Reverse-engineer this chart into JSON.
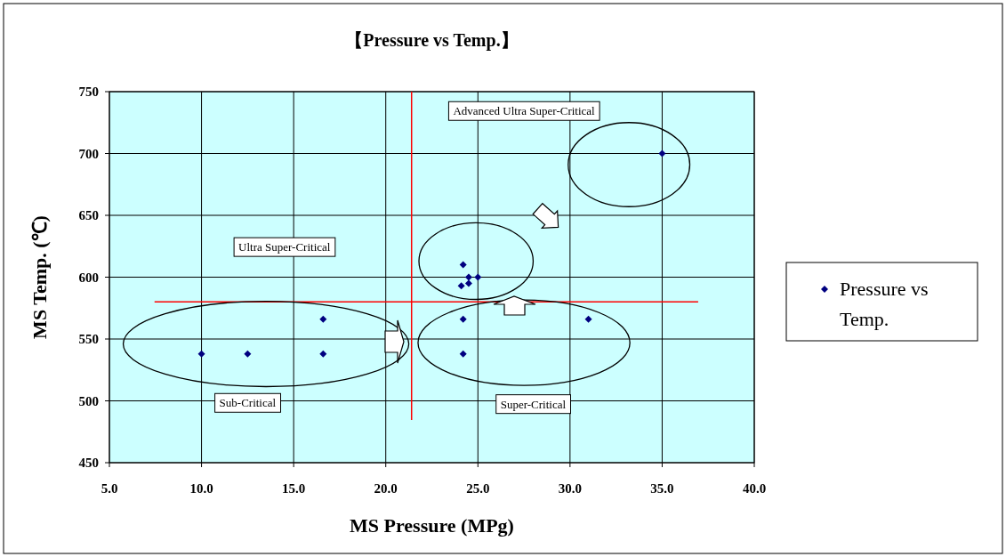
{
  "chart_data": {
    "type": "scatter",
    "title": "【Pressure vs Temp.】",
    "xlabel": "MS Pressure (MPg)",
    "ylabel": "MS Temp. (℃)",
    "x": [
      10.0,
      12.5,
      16.6,
      16.6,
      24.2,
      24.2,
      31.0,
      24.2,
      24.5,
      25.0,
      24.1,
      24.5,
      35.0
    ],
    "series": [
      {
        "name": "Pressure vs Temp.",
        "color": "#000080",
        "values": [
          538,
          538,
          538,
          566,
          538,
          566,
          566,
          610,
          600,
          600,
          593,
          595,
          700
        ]
      }
    ],
    "xlim": [
      5.0,
      40.0
    ],
    "xticks": [
      {
        "value": 5,
        "label": "5.0"
      },
      {
        "value": 10,
        "label": "10.0"
      },
      {
        "value": 15,
        "label": "15.0"
      },
      {
        "value": 20,
        "label": "20.0"
      },
      {
        "value": 25,
        "label": "25.0"
      },
      {
        "value": 30,
        "label": "30.0"
      },
      {
        "value": 35,
        "label": "35.0"
      },
      {
        "value": 40,
        "label": "40.0"
      }
    ],
    "ylim": [
      450,
      750
    ],
    "yticks": [
      450,
      500,
      550,
      600,
      650,
      700,
      750
    ],
    "ref_lines": [
      {
        "axis": "y",
        "value": 580,
        "color": "#ff0000"
      },
      {
        "axis": "x",
        "value": 21.4,
        "color": "#ff0000"
      }
    ],
    "annotations": [
      "Advanced Ultra Super-Critical",
      "Ultra Super-Critical",
      "Sub-Critical",
      "Super-Critical"
    ],
    "grid": true,
    "legend": "right",
    "marker": "diamond"
  }
}
